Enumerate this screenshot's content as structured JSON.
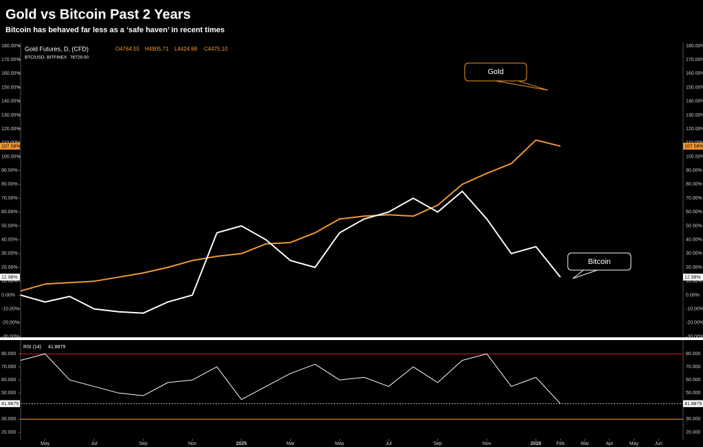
{
  "chart_data": [
    {
      "type": "line",
      "title": "Gold vs Bitcoin Past 2 Years",
      "subtitle": "Bitcoin has behaved far less as a ‘safe haven’ in recent times",
      "x": [
        "2024-04",
        "2024-05",
        "2024-06",
        "2024-07",
        "2024-08",
        "2024-09",
        "2024-10",
        "2024-11",
        "2024-12",
        "2025-01",
        "2025-02",
        "2025-03",
        "2025-04",
        "2025-05",
        "2025-06",
        "2025-07",
        "2025-08",
        "2025-09",
        "2025-10",
        "2025-11",
        "2025-12",
        "2026-01",
        "2026-02"
      ],
      "xlim": [
        "2024-04",
        "2026-07"
      ],
      "xticks": [
        {
          "value": "2024-05",
          "label": "May"
        },
        {
          "value": "2024-07",
          "label": "Jul"
        },
        {
          "value": "2024-09",
          "label": "Sep"
        },
        {
          "value": "2024-11",
          "label": "Nov"
        },
        {
          "value": "2025-01",
          "label": "2025"
        },
        {
          "value": "2025-03",
          "label": "Mar"
        },
        {
          "value": "2025-05",
          "label": "May"
        },
        {
          "value": "2025-07",
          "label": "Jul"
        },
        {
          "value": "2025-09",
          "label": "Sep"
        },
        {
          "value": "2025-11",
          "label": "Nov"
        },
        {
          "value": "2026-01",
          "label": "2026"
        },
        {
          "value": "2026-02",
          "label": "Feb"
        },
        {
          "value": "2026-03",
          "label": "Mar"
        },
        {
          "value": "2026-04",
          "label": "Apr"
        },
        {
          "value": "2026-05",
          "label": "May"
        },
        {
          "value": "2026-06",
          "label": "Jun"
        }
      ],
      "ylim": [
        -30,
        180
      ],
      "yticks": [
        {
          "value": 180,
          "label": "180.00%"
        },
        {
          "value": 170,
          "label": "170.00%"
        },
        {
          "value": 160,
          "label": "160.00%"
        },
        {
          "value": 150,
          "label": "150.00%"
        },
        {
          "value": 140,
          "label": "140.00%"
        },
        {
          "value": 130,
          "label": "130.00%"
        },
        {
          "value": 120,
          "label": "120.00%"
        },
        {
          "value": 110,
          "label": "110.00%"
        },
        {
          "value": 100,
          "label": "100.00%"
        },
        {
          "value": 90,
          "label": "90.00%"
        },
        {
          "value": 80,
          "label": "80.00%"
        },
        {
          "value": 70,
          "label": "70.00%"
        },
        {
          "value": 60,
          "label": "60.00%"
        },
        {
          "value": 50,
          "label": "50.00%"
        },
        {
          "value": 40,
          "label": "40.00%"
        },
        {
          "value": 30,
          "label": "30.00%"
        },
        {
          "value": 20,
          "label": "20.00%"
        },
        {
          "value": 10,
          "label": "10.00%"
        },
        {
          "value": 0,
          "label": "0.00%"
        },
        {
          "value": -10,
          "label": "-10.00%"
        },
        {
          "value": -20,
          "label": "-20.00%"
        },
        {
          "value": -30,
          "label": "-30.00%"
        }
      ],
      "series": [
        {
          "name": "Gold Futures, D, (CFD)",
          "color": "#f39a2e",
          "quote": [
            "O4764.55",
            "H4905.71",
            "L4424.69",
            "C4475.10"
          ],
          "values": [
            3,
            8,
            9,
            10,
            13,
            16,
            20,
            25,
            28,
            30,
            37,
            38,
            45,
            55,
            57,
            58,
            57,
            65,
            80,
            88,
            95,
            112,
            107.58
          ],
          "value_labels": [
            null,
            null,
            null,
            null,
            null,
            null,
            null,
            null,
            null,
            null,
            null,
            null,
            null,
            null,
            null,
            null,
            null,
            null,
            null,
            null,
            null,
            null,
            "107.58%"
          ]
        },
        {
          "name": "BTC/USD, BITFINEX",
          "color": "#ffffff",
          "quote": [
            "76729.00"
          ],
          "values": [
            0,
            -5,
            -1,
            -10,
            -12,
            -13,
            -5,
            0,
            45,
            50,
            40,
            25,
            20,
            45,
            55,
            60,
            70,
            60,
            75,
            55,
            30,
            35,
            12.98
          ],
          "value_labels": [
            null,
            null,
            null,
            null,
            null,
            null,
            null,
            null,
            null,
            null,
            null,
            null,
            null,
            null,
            null,
            null,
            null,
            null,
            null,
            null,
            null,
            null,
            "12.98%"
          ]
        }
      ],
      "annotations": [
        "Gold",
        "Bitcoin"
      ]
    },
    {
      "type": "line",
      "title": "RSI (14)",
      "ylim": [
        15,
        90
      ],
      "yticks": [
        {
          "value": 80,
          "label": "80.000"
        },
        {
          "value": 70,
          "label": "70.000"
        },
        {
          "value": 60,
          "label": "60.000"
        },
        {
          "value": 50,
          "label": "50.000"
        },
        {
          "value": 30,
          "label": "30.000"
        },
        {
          "value": 20,
          "label": "20.000"
        }
      ],
      "levels": [
        {
          "value": 80,
          "color": "#e0202a"
        },
        {
          "value": 30,
          "color": "#f39a2e"
        }
      ],
      "series": [
        {
          "color": "#ffffff",
          "values": [
            75,
            80,
            60,
            55,
            50,
            48,
            58,
            60,
            70,
            45,
            55,
            65,
            72,
            60,
            62,
            55,
            70,
            58,
            75,
            80,
            55,
            62,
            41.8879
          ]
        }
      ]
    }
  ]
}
